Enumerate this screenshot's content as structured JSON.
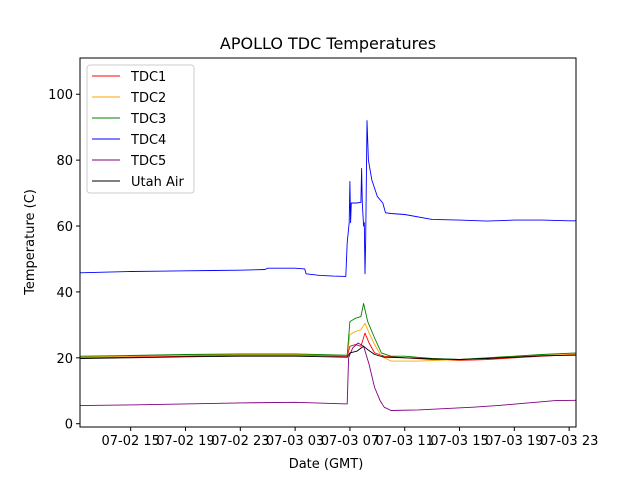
{
  "chart_data": {
    "type": "line",
    "title": "APOLLO TDC Temperatures",
    "xlabel": "Date (GMT)",
    "ylabel": "Temperature (C)",
    "xlim": [
      11.3,
      47.5
    ],
    "ylim": [
      -1,
      111
    ],
    "x_units": "hours since 07-02 00:00 GMT",
    "x_ticks": [
      {
        "value": 15,
        "label": "07-02 15"
      },
      {
        "value": 19,
        "label": "07-02 19"
      },
      {
        "value": 23,
        "label": "07-02 23"
      },
      {
        "value": 27,
        "label": "07-03 03"
      },
      {
        "value": 31,
        "label": "07-03 07"
      },
      {
        "value": 35,
        "label": "07-03 11"
      },
      {
        "value": 39,
        "label": "07-03 15"
      },
      {
        "value": 43,
        "label": "07-03 19"
      },
      {
        "value": 47,
        "label": "07-03 23"
      }
    ],
    "y_ticks": [
      0,
      20,
      40,
      60,
      80,
      100
    ],
    "legend": {
      "position": "top-left"
    },
    "grid": false,
    "series": [
      {
        "name": "TDC1",
        "color": "#ff0000",
        "points": [
          [
            11.3,
            20.0
          ],
          [
            15,
            20.2
          ],
          [
            19,
            20.5
          ],
          [
            23,
            20.8
          ],
          [
            27,
            20.8
          ],
          [
            30.8,
            20.5
          ],
          [
            31.0,
            23.5
          ],
          [
            31.4,
            24.0
          ],
          [
            31.8,
            23.5
          ],
          [
            32.1,
            27.5
          ],
          [
            32.4,
            24.5
          ],
          [
            32.8,
            21.5
          ],
          [
            33.5,
            20.5
          ],
          [
            35,
            20.0
          ],
          [
            37,
            19.5
          ],
          [
            39,
            19.2
          ],
          [
            41,
            19.5
          ],
          [
            43,
            20.0
          ],
          [
            45,
            20.5
          ],
          [
            47.5,
            21.0
          ]
        ]
      },
      {
        "name": "TDC2",
        "color": "#ffa500",
        "points": [
          [
            11.3,
            20.2
          ],
          [
            15,
            20.5
          ],
          [
            19,
            20.8
          ],
          [
            23,
            21.0
          ],
          [
            27,
            21.0
          ],
          [
            30.8,
            20.7
          ],
          [
            31.0,
            27.0
          ],
          [
            31.4,
            28.0
          ],
          [
            31.8,
            28.5
          ],
          [
            32.1,
            30.5
          ],
          [
            32.4,
            27.5
          ],
          [
            32.8,
            24.0
          ],
          [
            33.3,
            20.5
          ],
          [
            34,
            19.0
          ],
          [
            36,
            19.0
          ],
          [
            38,
            19.3
          ],
          [
            40,
            19.5
          ],
          [
            42,
            20.0
          ],
          [
            44,
            20.5
          ],
          [
            47.5,
            21.2
          ]
        ]
      },
      {
        "name": "TDC3",
        "color": "#008000",
        "points": [
          [
            11.3,
            20.5
          ],
          [
            15,
            20.7
          ],
          [
            19,
            21.0
          ],
          [
            23,
            21.2
          ],
          [
            27,
            21.2
          ],
          [
            30.8,
            20.8
          ],
          [
            31.0,
            31.0
          ],
          [
            31.4,
            32.0
          ],
          [
            31.8,
            32.5
          ],
          [
            32.0,
            36.5
          ],
          [
            32.3,
            31.0
          ],
          [
            32.8,
            26.0
          ],
          [
            33.3,
            21.5
          ],
          [
            34,
            20.5
          ],
          [
            35,
            20.5
          ],
          [
            37,
            19.8
          ],
          [
            39,
            19.5
          ],
          [
            41,
            20.0
          ],
          [
            43,
            20.5
          ],
          [
            45,
            21.0
          ],
          [
            47.5,
            21.5
          ]
        ]
      },
      {
        "name": "TDC4",
        "color": "#0000ff",
        "points": [
          [
            11.3,
            45.8
          ],
          [
            13,
            46.0
          ],
          [
            15,
            46.2
          ],
          [
            17,
            46.3
          ],
          [
            19,
            46.4
          ],
          [
            21,
            46.5
          ],
          [
            23,
            46.6
          ],
          [
            24.8,
            46.8
          ],
          [
            25.0,
            47.2
          ],
          [
            27,
            47.2
          ],
          [
            27.7,
            47.0
          ],
          [
            27.8,
            45.5
          ],
          [
            28.8,
            45.0
          ],
          [
            29.8,
            44.8
          ],
          [
            30.7,
            44.7
          ],
          [
            30.8,
            55.0
          ],
          [
            30.95,
            61.0
          ],
          [
            31.0,
            73.5
          ],
          [
            31.05,
            61.0
          ],
          [
            31.1,
            67.0
          ],
          [
            31.5,
            67.0
          ],
          [
            31.8,
            67.2
          ],
          [
            31.85,
            77.5
          ],
          [
            31.9,
            67.0
          ],
          [
            32.0,
            60.0
          ],
          [
            32.05,
            61.0
          ],
          [
            32.1,
            45.5
          ],
          [
            32.15,
            56.0
          ],
          [
            32.25,
            92.0
          ],
          [
            32.35,
            80.0
          ],
          [
            32.6,
            74.0
          ],
          [
            33.0,
            69.0
          ],
          [
            33.4,
            67.0
          ],
          [
            33.6,
            64.0
          ],
          [
            34,
            63.8
          ],
          [
            35,
            63.5
          ],
          [
            37,
            62.0
          ],
          [
            39,
            61.8
          ],
          [
            41,
            61.5
          ],
          [
            43,
            61.8
          ],
          [
            45,
            61.8
          ],
          [
            47,
            61.6
          ],
          [
            47.5,
            61.6
          ]
        ]
      },
      {
        "name": "TDC5",
        "color": "#800080",
        "points": [
          [
            11.3,
            5.5
          ],
          [
            15,
            5.7
          ],
          [
            19,
            6.0
          ],
          [
            23,
            6.3
          ],
          [
            27,
            6.5
          ],
          [
            30.8,
            6.0
          ],
          [
            30.9,
            20.0
          ],
          [
            31.2,
            23.0
          ],
          [
            31.6,
            24.5
          ],
          [
            32.0,
            23.5
          ],
          [
            32.4,
            18.0
          ],
          [
            32.8,
            11.0
          ],
          [
            33.2,
            7.0
          ],
          [
            33.5,
            5.0
          ],
          [
            34,
            4.0
          ],
          [
            36,
            4.2
          ],
          [
            38,
            4.6
          ],
          [
            40,
            5.0
          ],
          [
            42,
            5.6
          ],
          [
            44,
            6.3
          ],
          [
            46,
            7.0
          ],
          [
            47.5,
            7.1
          ]
        ]
      },
      {
        "name": "Utah Air",
        "color": "#000000",
        "points": [
          [
            11.3,
            19.8
          ],
          [
            15,
            20.0
          ],
          [
            19,
            20.3
          ],
          [
            23,
            20.5
          ],
          [
            27,
            20.5
          ],
          [
            30.8,
            20.2
          ],
          [
            31.0,
            21.5
          ],
          [
            31.5,
            22.0
          ],
          [
            32.0,
            23.5
          ],
          [
            32.3,
            22.5
          ],
          [
            32.8,
            21.0
          ],
          [
            33.5,
            20.2
          ],
          [
            35,
            20.0
          ],
          [
            37,
            19.7
          ],
          [
            39,
            19.5
          ],
          [
            41,
            19.8
          ],
          [
            43,
            20.2
          ],
          [
            45,
            20.6
          ],
          [
            47.5,
            20.8
          ]
        ]
      }
    ]
  }
}
